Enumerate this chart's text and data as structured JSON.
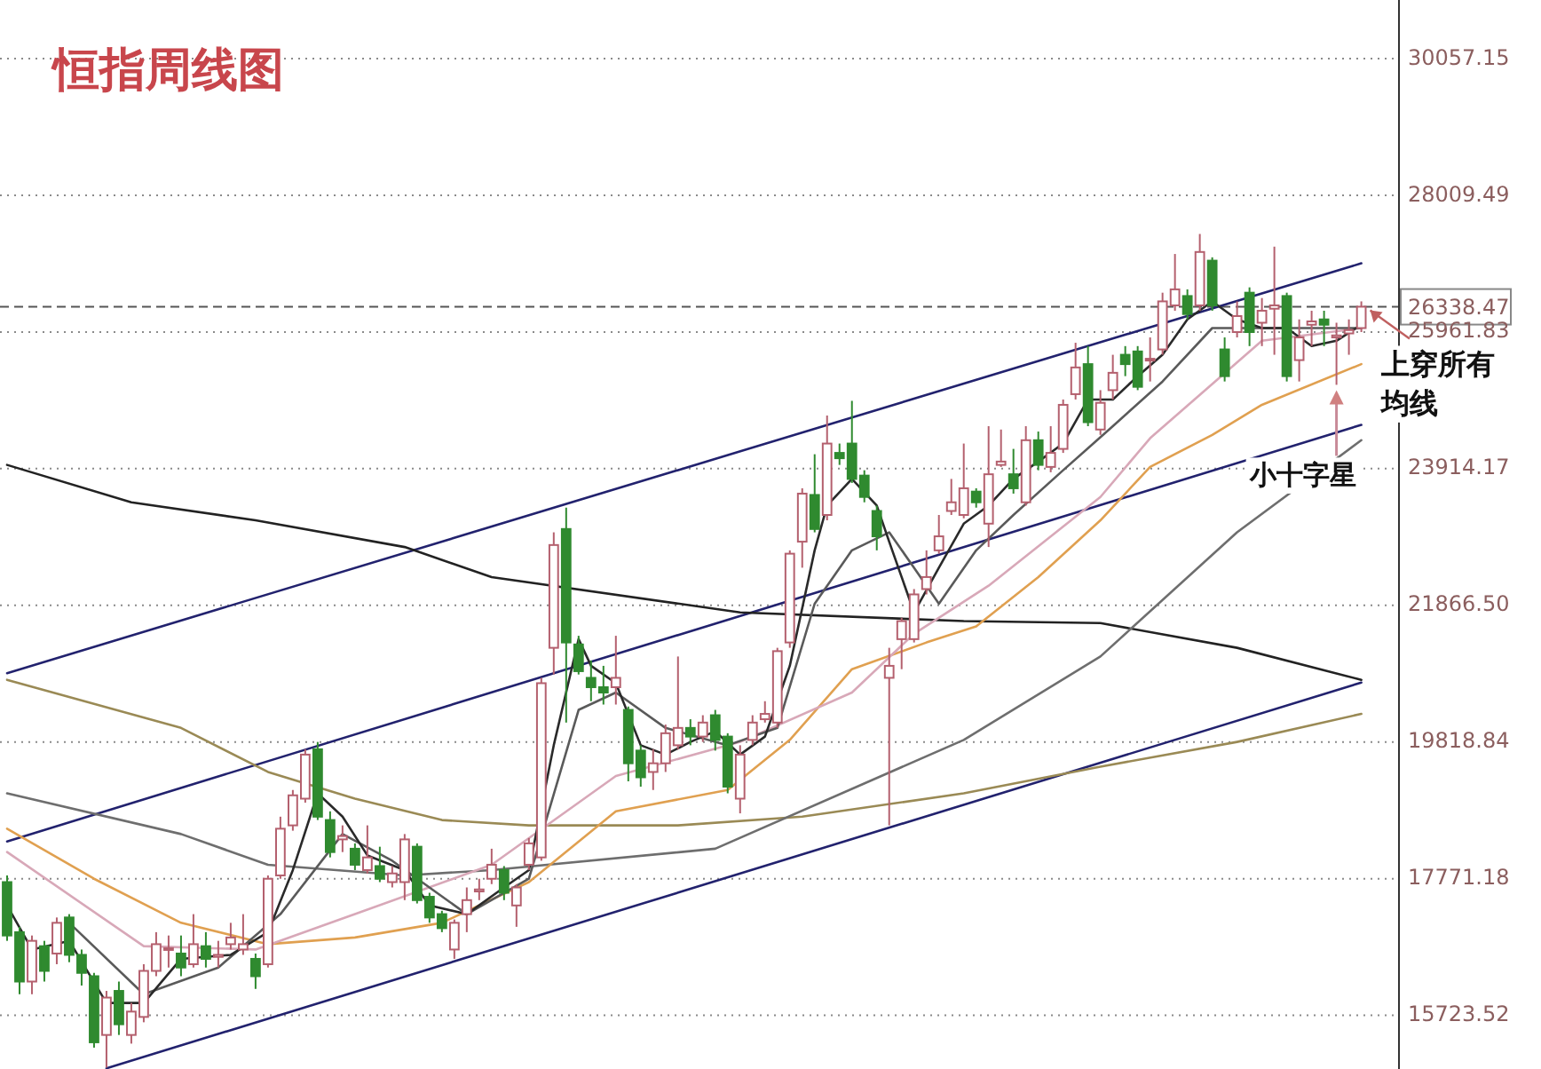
{
  "chart_data": {
    "type": "candlestick",
    "title": "恒指周线图",
    "categories": [
      null,
      null,
      null,
      null,
      null,
      null,
      null,
      null,
      null,
      null,
      null,
      null,
      null,
      null,
      null,
      null,
      null,
      null,
      null,
      null,
      null,
      null,
      null,
      null,
      null,
      null,
      null,
      null,
      null,
      null,
      null,
      null,
      null,
      null,
      null,
      null,
      null,
      null,
      null,
      null,
      null,
      null,
      null,
      null,
      null,
      null,
      null,
      null,
      null,
      null,
      null,
      null,
      null,
      null,
      null,
      null,
      null,
      null,
      null,
      null,
      null,
      null,
      null,
      null,
      null,
      null,
      null,
      null,
      null,
      null,
      null,
      null,
      null,
      null,
      null,
      null,
      null,
      null,
      null,
      null,
      null,
      null,
      null,
      null,
      null,
      null,
      null,
      null,
      null,
      null,
      null,
      null,
      null,
      null,
      null,
      null,
      null,
      null,
      null,
      null,
      null,
      null,
      null,
      null,
      null,
      null,
      null,
      null,
      null,
      null
    ],
    "ohlc": [
      [
        17720,
        17820,
        16840,
        16920
      ],
      [
        16970,
        17050,
        16040,
        16230
      ],
      [
        16230,
        16920,
        16040,
        16840
      ],
      [
        16760,
        16840,
        16230,
        16390
      ],
      [
        16650,
        17190,
        16490,
        17110
      ],
      [
        17190,
        17240,
        16520,
        16630
      ],
      [
        16630,
        16710,
        16170,
        16360
      ],
      [
        16310,
        16360,
        15240,
        15320
      ],
      [
        15430,
        16090,
        14940,
        15990
      ],
      [
        16090,
        16230,
        15430,
        15590
      ],
      [
        15430,
        15910,
        15300,
        15780
      ],
      [
        15700,
        16490,
        15620,
        16390
      ],
      [
        16390,
        16970,
        16310,
        16790
      ],
      [
        16710,
        16920,
        16440,
        16730
      ],
      [
        16650,
        16920,
        16310,
        16440
      ],
      [
        16490,
        17240,
        16440,
        16790
      ],
      [
        16760,
        16970,
        16440,
        16570
      ],
      [
        16600,
        16840,
        16440,
        16630
      ],
      [
        16790,
        17110,
        16710,
        16890
      ],
      [
        16710,
        17240,
        16630,
        16790
      ],
      [
        16570,
        16650,
        16120,
        16310
      ],
      [
        16490,
        17820,
        16440,
        17770
      ],
      [
        17820,
        18700,
        17770,
        18520
      ],
      [
        18570,
        19100,
        18490,
        19020
      ],
      [
        18970,
        19710,
        18910,
        19630
      ],
      [
        19710,
        19820,
        18650,
        18700
      ],
      [
        18650,
        18780,
        18090,
        18170
      ],
      [
        18360,
        18570,
        18170,
        18410
      ],
      [
        18220,
        18300,
        17900,
        17980
      ],
      [
        17900,
        18570,
        17850,
        18090
      ],
      [
        17960,
        18250,
        17720,
        17770
      ],
      [
        17720,
        17960,
        17640,
        17850
      ],
      [
        17720,
        18440,
        17450,
        18360
      ],
      [
        18250,
        18300,
        17400,
        17450
      ],
      [
        17500,
        17560,
        17110,
        17190
      ],
      [
        17240,
        17290,
        16970,
        17030
      ],
      [
        16710,
        17160,
        16570,
        17110
      ],
      [
        17240,
        17640,
        16970,
        17450
      ],
      [
        17580,
        17770,
        17450,
        17610
      ],
      [
        17770,
        18220,
        17690,
        17980
      ],
      [
        17900,
        17960,
        17450,
        17560
      ],
      [
        17370,
        17690,
        17050,
        17640
      ],
      [
        17980,
        18380,
        17900,
        18300
      ],
      [
        18090,
        20780,
        18040,
        20700
      ],
      [
        21230,
        22960,
        20830,
        22770
      ],
      [
        23010,
        23330,
        20110,
        21310
      ],
      [
        21280,
        21410,
        20830,
        20880
      ],
      [
        20780,
        21040,
        20430,
        20640
      ],
      [
        20640,
        20960,
        20380,
        20560
      ],
      [
        20640,
        21410,
        20380,
        20780
      ],
      [
        20300,
        20350,
        19230,
        19500
      ],
      [
        19690,
        19770,
        19150,
        19290
      ],
      [
        19370,
        19710,
        19100,
        19500
      ],
      [
        19500,
        20080,
        19370,
        19950
      ],
      [
        19770,
        21100,
        19710,
        20030
      ],
      [
        20030,
        20160,
        19770,
        19900
      ],
      [
        19900,
        20220,
        19820,
        20110
      ],
      [
        20220,
        20300,
        19690,
        19850
      ],
      [
        19900,
        19950,
        19050,
        19150
      ],
      [
        18970,
        19770,
        18750,
        19630
      ],
      [
        19850,
        20220,
        19770,
        20110
      ],
      [
        20160,
        20430,
        20110,
        20240
      ],
      [
        20110,
        21230,
        20030,
        21180
      ],
      [
        21310,
        22690,
        21230,
        22640
      ],
      [
        22820,
        23620,
        22430,
        23540
      ],
      [
        23520,
        24130,
        22960,
        23010
      ],
      [
        23220,
        24710,
        23140,
        24290
      ],
      [
        24150,
        24290,
        23970,
        24070
      ],
      [
        24290,
        24930,
        23700,
        23760
      ],
      [
        23810,
        23890,
        23410,
        23490
      ],
      [
        23280,
        23360,
        22690,
        22900
      ],
      [
        20780,
        21230,
        18570,
        20960
      ],
      [
        21360,
        21680,
        20910,
        21630
      ],
      [
        21360,
        22110,
        21310,
        22030
      ],
      [
        22110,
        22690,
        22030,
        22290
      ],
      [
        22690,
        23220,
        22640,
        22900
      ],
      [
        23280,
        23760,
        23220,
        23410
      ],
      [
        23220,
        24290,
        23170,
        23620
      ],
      [
        23570,
        23620,
        23330,
        23410
      ],
      [
        23090,
        24550,
        22740,
        23830
      ],
      [
        23970,
        24500,
        23940,
        24020
      ],
      [
        23830,
        24210,
        23540,
        23620
      ],
      [
        23410,
        24550,
        23360,
        24340
      ],
      [
        24340,
        24470,
        23890,
        23970
      ],
      [
        23940,
        24550,
        23860,
        24150
      ],
      [
        24210,
        24950,
        24150,
        24870
      ],
      [
        25030,
        25800,
        24950,
        25430
      ],
      [
        25480,
        25750,
        24550,
        24610
      ],
      [
        24500,
        25090,
        24420,
        24900
      ],
      [
        25090,
        25620,
        24950,
        25350
      ],
      [
        25620,
        25750,
        25300,
        25480
      ],
      [
        25670,
        25750,
        25090,
        25140
      ],
      [
        25540,
        25880,
        25220,
        25560
      ],
      [
        25700,
        26550,
        25620,
        26420
      ],
      [
        26360,
        27130,
        26280,
        26600
      ],
      [
        26500,
        26600,
        26150,
        26230
      ],
      [
        26360,
        27430,
        26280,
        27160
      ],
      [
        27030,
        27080,
        26280,
        26360
      ],
      [
        25700,
        25880,
        25220,
        25300
      ],
      [
        25960,
        26420,
        25880,
        26200
      ],
      [
        26550,
        26630,
        25750,
        25960
      ],
      [
        26100,
        26470,
        25750,
        26280
      ],
      [
        26310,
        27240,
        25620,
        26360
      ],
      [
        26500,
        26550,
        25220,
        25300
      ],
      [
        25540,
        26150,
        25220,
        25880
      ],
      [
        26070,
        26280,
        25750,
        26120
      ],
      [
        26150,
        26280,
        25750,
        26070
      ],
      [
        25880,
        26100,
        25170,
        25910
      ],
      [
        25940,
        26150,
        25620,
        25990
      ],
      [
        26020,
        26420,
        25960,
        26340
      ]
    ],
    "series": [
      {
        "type": "line",
        "color": "#22226e",
        "values": [
          20850,
          null,
          null,
          null,
          null,
          null,
          null,
          null,
          null,
          null,
          null,
          null,
          null,
          null,
          null,
          null,
          null,
          null,
          null,
          null,
          null,
          null,
          null,
          null,
          null,
          null,
          null,
          null,
          null,
          null,
          null,
          null,
          null,
          null,
          null,
          null,
          null,
          null,
          null,
          null,
          null,
          null,
          null,
          null,
          null,
          null,
          null,
          null,
          null,
          null,
          null,
          null,
          null,
          null,
          null,
          null,
          null,
          null,
          null,
          null,
          null,
          null,
          null,
          null,
          null,
          null,
          null,
          null,
          null,
          null,
          null,
          null,
          null,
          null,
          null,
          null,
          null,
          null,
          null,
          null,
          null,
          null,
          null,
          null,
          null,
          null,
          null,
          null,
          null,
          null,
          null,
          null,
          null,
          null,
          null,
          null,
          null,
          null,
          null,
          null,
          null,
          null,
          null,
          null,
          null,
          null,
          null,
          null,
          null,
          26990
        ]
      },
      {
        "type": "line",
        "color": "#22226e",
        "values": [
          18330,
          null,
          null,
          null,
          null,
          null,
          null,
          null,
          null,
          null,
          null,
          null,
          null,
          null,
          null,
          null,
          null,
          null,
          null,
          null,
          null,
          null,
          null,
          null,
          null,
          null,
          null,
          null,
          null,
          null,
          null,
          null,
          null,
          null,
          null,
          null,
          null,
          null,
          null,
          null,
          null,
          null,
          null,
          null,
          null,
          null,
          null,
          null,
          null,
          null,
          null,
          null,
          null,
          null,
          null,
          null,
          null,
          null,
          null,
          null,
          null,
          null,
          null,
          null,
          null,
          null,
          null,
          null,
          null,
          null,
          null,
          null,
          null,
          null,
          null,
          null,
          null,
          null,
          null,
          null,
          null,
          null,
          null,
          null,
          null,
          null,
          null,
          null,
          null,
          null,
          null,
          null,
          null,
          null,
          null,
          null,
          null,
          null,
          null,
          null,
          null,
          null,
          null,
          null,
          null,
          null,
          null,
          null,
          null,
          24570
        ]
      },
      {
        "type": "line",
        "color": "#22226e",
        "values": [
          null,
          null,
          null,
          null,
          null,
          null,
          null,
          null,
          14930,
          null,
          null,
          null,
          null,
          null,
          null,
          null,
          null,
          null,
          null,
          null,
          null,
          null,
          null,
          null,
          null,
          null,
          null,
          null,
          null,
          null,
          null,
          null,
          null,
          null,
          null,
          null,
          null,
          null,
          null,
          null,
          null,
          null,
          null,
          null,
          null,
          null,
          null,
          null,
          null,
          null,
          null,
          null,
          null,
          null,
          null,
          null,
          null,
          null,
          null,
          null,
          null,
          null,
          null,
          null,
          null,
          null,
          null,
          null,
          null,
          null,
          null,
          null,
          null,
          null,
          null,
          null,
          null,
          null,
          null,
          null,
          null,
          null,
          null,
          null,
          null,
          null,
          null,
          null,
          null,
          null,
          null,
          null,
          null,
          null,
          null,
          null,
          null,
          null,
          null,
          null,
          null,
          null,
          null,
          null,
          null,
          null,
          null,
          null,
          null,
          20710
        ]
      },
      {
        "type": "line",
        "color": "#222222",
        "values": [
          23970,
          null,
          null,
          null,
          null,
          null,
          null,
          null,
          null,
          null,
          23410,
          null,
          null,
          null,
          null,
          null,
          null,
          null,
          null,
          null,
          23140,
          null,
          null,
          null,
          null,
          null,
          null,
          null,
          null,
          null,
          null,
          null,
          22740,
          null,
          null,
          null,
          null,
          null,
          null,
          22290,
          null,
          null,
          null,
          null,
          null,
          null,
          null,
          null,
          null,
          null,
          null,
          null,
          null,
          null,
          null,
          null,
          null,
          null,
          null,
          21760,
          null,
          null,
          null,
          null,
          null,
          null,
          null,
          null,
          null,
          null,
          null,
          null,
          null,
          null,
          null,
          null,
          null,
          21630,
          null,
          null,
          null,
          null,
          null,
          null,
          null,
          null,
          null,
          null,
          21600,
          null,
          null,
          null,
          null,
          null,
          null,
          null,
          null,
          null,
          null,
          21230,
          null,
          null,
          null,
          null,
          null,
          null,
          null,
          null,
          null,
          20750
        ]
      },
      {
        "type": "line",
        "color": "#9a8a55",
        "values": [
          20750,
          null,
          null,
          null,
          null,
          null,
          null,
          null,
          null,
          null,
          null,
          null,
          null,
          null,
          20030,
          null,
          null,
          null,
          null,
          null,
          null,
          19370,
          null,
          null,
          null,
          null,
          null,
          null,
          18970,
          null,
          null,
          null,
          null,
          null,
          null,
          18650,
          null,
          null,
          null,
          null,
          null,
          null,
          18570,
          null,
          null,
          null,
          null,
          null,
          null,
          null,
          null,
          null,
          null,
          null,
          18570,
          null,
          null,
          null,
          null,
          null,
          null,
          null,
          null,
          null,
          18700,
          null,
          null,
          null,
          null,
          null,
          null,
          null,
          null,
          null,
          null,
          null,
          null,
          19050,
          null,
          null,
          null,
          null,
          null,
          null,
          null,
          null,
          null,
          null,
          19450,
          null,
          null,
          null,
          null,
          null,
          null,
          null,
          null,
          null,
          null,
          19820,
          null,
          null,
          null,
          null,
          null,
          null,
          null,
          null,
          null,
          20240
        ]
      },
      {
        "type": "line",
        "color": "#6e6e6e",
        "values": [
          19050,
          null,
          null,
          null,
          null,
          null,
          null,
          null,
          null,
          null,
          null,
          null,
          null,
          null,
          18440,
          null,
          null,
          null,
          null,
          null,
          null,
          17980,
          null,
          null,
          null,
          null,
          null,
          null,
          null,
          null,
          null,
          null,
          17820,
          null,
          null,
          null,
          null,
          null,
          null,
          17900,
          null,
          null,
          null,
          null,
          null,
          null,
          null,
          null,
          null,
          null,
          null,
          null,
          null,
          null,
          null,
          null,
          null,
          18220,
          null,
          null,
          null,
          null,
          null,
          null,
          null,
          null,
          null,
          null,
          null,
          null,
          null,
          null,
          null,
          null,
          null,
          null,
          null,
          19850,
          null,
          null,
          null,
          null,
          null,
          null,
          null,
          null,
          null,
          null,
          21100,
          null,
          null,
          null,
          null,
          null,
          null,
          null,
          null,
          null,
          null,
          22960,
          null,
          null,
          null,
          null,
          null,
          null,
          null,
          null,
          null,
          24340
        ]
      },
      {
        "type": "line",
        "color": "#e0a050",
        "values": [
          18520,
          null,
          null,
          null,
          null,
          null,
          null,
          17770,
          null,
          null,
          null,
          null,
          null,
          null,
          17110,
          null,
          null,
          null,
          null,
          null,
          null,
          16790,
          null,
          null,
          null,
          null,
          null,
          null,
          16890,
          null,
          null,
          null,
          null,
          null,
          null,
          17110,
          null,
          null,
          null,
          null,
          null,
          null,
          17720,
          null,
          null,
          null,
          null,
          null,
          null,
          18780,
          null,
          null,
          null,
          null,
          null,
          null,
          null,
          null,
          19100,
          null,
          null,
          null,
          null,
          19850,
          null,
          null,
          null,
          null,
          20910,
          null,
          null,
          null,
          null,
          null,
          21310,
          null,
          null,
          null,
          21550,
          null,
          null,
          null,
          null,
          22290,
          null,
          null,
          null,
          null,
          23140,
          null,
          null,
          null,
          23940,
          null,
          null,
          null,
          null,
          24420,
          null,
          null,
          null,
          24870,
          null,
          null,
          null,
          null,
          null,
          null,
          null,
          25480
        ]
      },
      {
        "type": "line",
        "color": "#d8a8b8",
        "values": [
          18170,
          null,
          null,
          null,
          null,
          null,
          null,
          null,
          null,
          null,
          null,
          16760,
          null,
          null,
          null,
          null,
          null,
          null,
          null,
          null,
          16710,
          null,
          null,
          null,
          null,
          null,
          null,
          null,
          17240,
          null,
          null,
          null,
          null,
          null,
          null,
          null,
          null,
          null,
          null,
          17980,
          null,
          null,
          null,
          null,
          null,
          null,
          null,
          null,
          null,
          19310,
          null,
          null,
          null,
          null,
          null,
          null,
          null,
          null,
          null,
          19820,
          null,
          null,
          null,
          null,
          null,
          null,
          null,
          null,
          20560,
          null,
          null,
          null,
          null,
          21440,
          null,
          null,
          null,
          null,
          null,
          22160,
          null,
          null,
          null,
          null,
          null,
          null,
          null,
          null,
          23490,
          null,
          null,
          null,
          24370,
          null,
          null,
          null,
          null,
          null,
          null,
          null,
          null,
          25830,
          null,
          null,
          null,
          null,
          null,
          null,
          null,
          26020
        ]
      },
      {
        "type": "line",
        "color": "#5a5a5a",
        "values": [
          null,
          null,
          null,
          null,
          null,
          17110,
          null,
          null,
          null,
          null,
          null,
          16040,
          null,
          null,
          null,
          null,
          null,
          16440,
          null,
          null,
          null,
          null,
          17240,
          null,
          null,
          null,
          null,
          18440,
          null,
          null,
          null,
          18040,
          null,
          null,
          null,
          null,
          null,
          17240,
          null,
          null,
          null,
          null,
          17770,
          null,
          null,
          null,
          20300,
          null,
          null,
          20560,
          null,
          null,
          null,
          20030,
          null,
          null,
          null,
          null,
          19770,
          null,
          null,
          null,
          20030,
          null,
          null,
          21890,
          null,
          null,
          22690,
          null,
          null,
          22960,
          null,
          22430,
          null,
          21890,
          null,
          null,
          22690,
          null,
          null,
          23220,
          null,
          null,
          null,
          23890,
          null,
          null,
          null,
          24550,
          null,
          null,
          null,
          25220,
          null,
          null,
          null,
          26020,
          null,
          null,
          null,
          26020,
          null,
          null,
          null,
          26020,
          null,
          null,
          null,
          26020
        ]
      },
      {
        "type": "line",
        "color": "#2a2a2a",
        "values": [
          17370,
          null,
          16710,
          null,
          null,
          16840,
          null,
          null,
          15910,
          null,
          null,
          15910,
          null,
          null,
          16570,
          null,
          null,
          null,
          16630,
          null,
          null,
          16970,
          null,
          17900,
          null,
          19050,
          null,
          18700,
          null,
          18120,
          null,
          null,
          17900,
          null,
          17370,
          null,
          null,
          17240,
          null,
          null,
          17640,
          null,
          17900,
          null,
          19770,
          null,
          21360,
          20960,
          null,
          20700,
          null,
          19770,
          null,
          19630,
          null,
          19820,
          null,
          19980,
          null,
          19630,
          null,
          19900,
          null,
          20960,
          null,
          22690,
          23360,
          null,
          23760,
          null,
          23360,
          22820,
          null,
          21760,
          null,
          22430,
          null,
          23090,
          null,
          23360,
          null,
          23760,
          null,
          24020,
          null,
          24290,
          null,
          24950,
          null,
          24950,
          null,
          25300,
          null,
          25620,
          null,
          26150,
          null,
          26420,
          null,
          26150,
          null,
          26020,
          null,
          26020,
          null,
          25750,
          null,
          25830,
          null,
          26070
        ]
      }
    ],
    "ylim": [
      14920,
      30935
    ],
    "yticks": [
      30057.15,
      28009.49,
      25961.83,
      23914.17,
      {
        "value": 21866.5,
        "label": "21866.50"
      },
      19818.84,
      17771.18,
      15723.52
    ],
    "tick_labels": "y",
    "grid": "y",
    "ref_lines": [
      {
        "axis": "y",
        "value": 26338.47,
        "label": "26338.47",
        "line_style": "dashed",
        "color": "#555555"
      }
    ],
    "annotations": [
      "上穿所有均线",
      "小十字星"
    ]
  }
}
